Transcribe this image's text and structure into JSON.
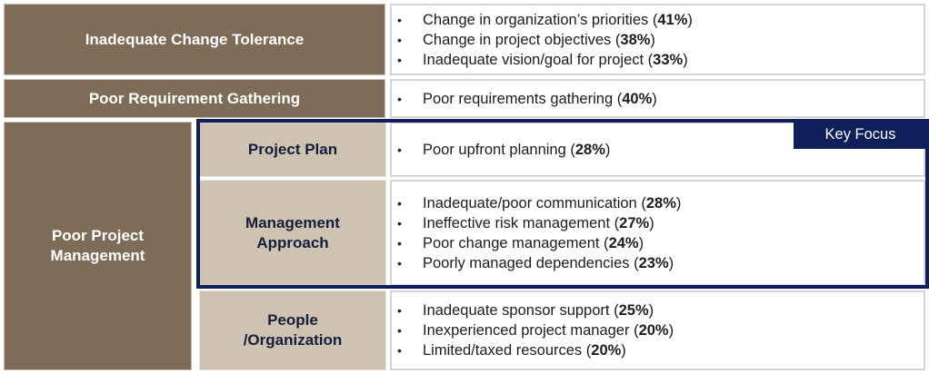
{
  "rows": {
    "change_tolerance": {
      "label": "Inadequate Change Tolerance",
      "items": [
        {
          "text": "Change in organization’s priorities",
          "pct": "41%"
        },
        {
          "text": "Change in project objectives",
          "pct": "38%"
        },
        {
          "text": "Inadequate vision/goal for project",
          "pct": "33%"
        }
      ]
    },
    "requirement_gathering": {
      "label": "Poor Requirement Gathering",
      "items": [
        {
          "text": "Poor requirements gathering",
          "pct": "40%"
        }
      ]
    },
    "project_management": {
      "label_line1": "Poor Project",
      "label_line2": "Management",
      "sub": {
        "project_plan": {
          "label": "Project Plan",
          "items": [
            {
              "text": "Poor upfront planning",
              "pct": "28%"
            }
          ]
        },
        "management_approach": {
          "label_line1": "Management",
          "label_line2": "Approach",
          "items": [
            {
              "text": "Inadequate/poor communication",
              "pct": "28%"
            },
            {
              "text": "Ineffective risk management",
              "pct": "27%"
            },
            {
              "text": "Poor change management",
              "pct": "24%"
            },
            {
              "text": "Poorly managed dependencies",
              "pct": "23%"
            }
          ]
        },
        "people_organization": {
          "label_line1": "People",
          "label_line2": "/Organization",
          "items": [
            {
              "text": "Inadequate sponsor support",
              "pct": "25%"
            },
            {
              "text": "Inexperienced project manager",
              "pct": "20%"
            },
            {
              "text": "Limited/taxed resources",
              "pct": "20%"
            }
          ]
        }
      }
    }
  },
  "key_focus": {
    "label": "Key Focus",
    "border_color": "#0f1f5c"
  },
  "colors": {
    "dark_cell": "#7d6c57",
    "light_cell": "#cdc3b0",
    "light_text": "#161c3c"
  }
}
